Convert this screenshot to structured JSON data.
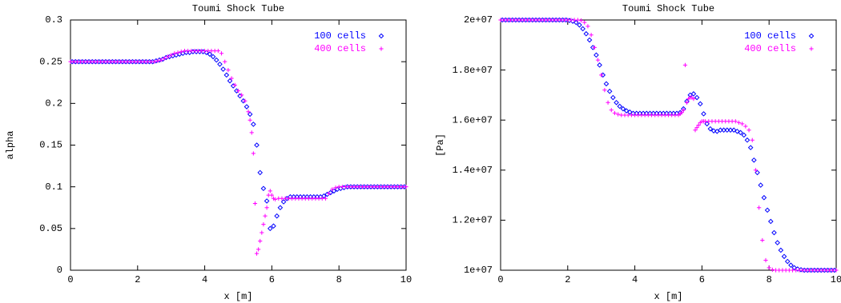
{
  "chart_data": [
    {
      "type": "scatter",
      "title": "Toumi Shock Tube",
      "x_label": "x [m]",
      "y_label": "alpha",
      "xlim": [
        0,
        10
      ],
      "ylim": [
        0,
        0.3
      ],
      "xticks": [
        0,
        2,
        4,
        6,
        8,
        10
      ],
      "yticks": [
        0,
        0.05,
        0.1,
        0.15,
        0.2,
        0.25,
        0.3
      ],
      "legend": "top-right",
      "series": [
        {
          "name": "100 cells",
          "color": "#0000ff",
          "marker": "diamond",
          "x": [
            0.05,
            0.15,
            0.25,
            0.35,
            0.45,
            0.55,
            0.65,
            0.75,
            0.85,
            0.95,
            1.05,
            1.15,
            1.25,
            1.35,
            1.45,
            1.55,
            1.65,
            1.75,
            1.85,
            1.95,
            2.05,
            2.15,
            2.25,
            2.35,
            2.45,
            2.55,
            2.65,
            2.75,
            2.85,
            2.95,
            3.05,
            3.15,
            3.25,
            3.35,
            3.45,
            3.55,
            3.65,
            3.75,
            3.85,
            3.95,
            4.05,
            4.15,
            4.25,
            4.35,
            4.45,
            4.55,
            4.65,
            4.75,
            4.85,
            4.95,
            5.05,
            5.15,
            5.25,
            5.35,
            5.45,
            5.55,
            5.65,
            5.75,
            5.85,
            5.95,
            6.05,
            6.15,
            6.25,
            6.35,
            6.45,
            6.55,
            6.65,
            6.75,
            6.85,
            6.95,
            7.05,
            7.15,
            7.25,
            7.35,
            7.45,
            7.55,
            7.65,
            7.75,
            7.85,
            7.95,
            8.05,
            8.15,
            8.25,
            8.35,
            8.45,
            8.55,
            8.65,
            8.75,
            8.85,
            8.95,
            9.05,
            9.15,
            9.25,
            9.35,
            9.45,
            9.55,
            9.65,
            9.75,
            9.85,
            9.95
          ],
          "values": [
            0.25,
            0.25,
            0.25,
            0.25,
            0.25,
            0.25,
            0.25,
            0.25,
            0.25,
            0.25,
            0.25,
            0.25,
            0.25,
            0.25,
            0.25,
            0.25,
            0.25,
            0.25,
            0.25,
            0.25,
            0.25,
            0.25,
            0.25,
            0.25,
            0.25,
            0.251,
            0.252,
            0.253,
            0.255,
            0.256,
            0.257,
            0.258,
            0.259,
            0.26,
            0.261,
            0.261,
            0.262,
            0.262,
            0.262,
            0.262,
            0.261,
            0.259,
            0.256,
            0.252,
            0.247,
            0.241,
            0.234,
            0.227,
            0.221,
            0.215,
            0.209,
            0.203,
            0.196,
            0.187,
            0.175,
            0.15,
            0.117,
            0.098,
            0.083,
            0.05,
            0.053,
            0.065,
            0.075,
            0.082,
            0.086,
            0.088,
            0.088,
            0.088,
            0.088,
            0.088,
            0.088,
            0.088,
            0.088,
            0.088,
            0.088,
            0.089,
            0.091,
            0.093,
            0.095,
            0.097,
            0.098,
            0.099,
            0.1,
            0.1,
            0.1,
            0.1,
            0.1,
            0.1,
            0.1,
            0.1,
            0.1,
            0.1,
            0.1,
            0.1,
            0.1,
            0.1,
            0.1,
            0.1,
            0.1,
            0.1
          ]
        },
        {
          "name": "400 cells",
          "color": "#ff00ff",
          "marker": "plus",
          "x": [
            0,
            0.1,
            0.2,
            0.3,
            0.4,
            0.5,
            0.6,
            0.7,
            0.8,
            0.9,
            1,
            1.1,
            1.2,
            1.3,
            1.4,
            1.5,
            1.6,
            1.7,
            1.8,
            1.9,
            2,
            2.1,
            2.2,
            2.3,
            2.4,
            2.5,
            2.6,
            2.7,
            2.8,
            2.9,
            3,
            3.1,
            3.2,
            3.3,
            3.4,
            3.5,
            3.6,
            3.7,
            3.8,
            3.9,
            4,
            4.1,
            4.2,
            4.3,
            4.4,
            4.5,
            4.6,
            4.7,
            4.8,
            4.9,
            5,
            5.1,
            5.2,
            5.3,
            5.35,
            5.4,
            5.45,
            5.5,
            5.55,
            5.6,
            5.65,
            5.7,
            5.75,
            5.8,
            5.85,
            5.9,
            5.95,
            6,
            6.05,
            6.1,
            6.2,
            6.3,
            6.4,
            6.5,
            6.6,
            6.7,
            6.8,
            6.9,
            7,
            7.1,
            7.2,
            7.3,
            7.4,
            7.5,
            7.6,
            7.7,
            7.8,
            7.9,
            8,
            8.1,
            8.2,
            8.3,
            8.4,
            8.5,
            8.6,
            8.7,
            8.8,
            8.9,
            9,
            9.1,
            9.2,
            9.3,
            9.4,
            9.5,
            9.6,
            9.7,
            9.8,
            9.9,
            10
          ],
          "values": [
            0.25,
            0.25,
            0.25,
            0.25,
            0.25,
            0.25,
            0.25,
            0.25,
            0.25,
            0.25,
            0.25,
            0.25,
            0.25,
            0.25,
            0.25,
            0.25,
            0.25,
            0.25,
            0.25,
            0.25,
            0.25,
            0.25,
            0.25,
            0.25,
            0.25,
            0.25,
            0.251,
            0.252,
            0.254,
            0.256,
            0.258,
            0.26,
            0.261,
            0.262,
            0.263,
            0.263,
            0.263,
            0.263,
            0.263,
            0.263,
            0.263,
            0.263,
            0.263,
            0.263,
            0.263,
            0.26,
            0.25,
            0.24,
            0.23,
            0.222,
            0.215,
            0.21,
            0.203,
            0.19,
            0.18,
            0.165,
            0.14,
            0.08,
            0.02,
            0.025,
            0.035,
            0.045,
            0.055,
            0.065,
            0.075,
            0.09,
            0.095,
            0.09,
            0.086,
            0.085,
            0.086,
            0.086,
            0.086,
            0.086,
            0.086,
            0.086,
            0.086,
            0.086,
            0.086,
            0.086,
            0.086,
            0.086,
            0.086,
            0.086,
            0.086,
            0.092,
            0.097,
            0.099,
            0.1,
            0.1,
            0.1,
            0.1,
            0.1,
            0.1,
            0.1,
            0.1,
            0.1,
            0.1,
            0.1,
            0.1,
            0.1,
            0.1,
            0.1,
            0.1,
            0.1,
            0.1,
            0.1,
            0.1,
            0.1
          ]
        }
      ]
    },
    {
      "type": "scatter",
      "title": "Toumi Shock Tube",
      "x_label": "x [m]",
      "y_label": "[Pa]",
      "xlim": [
        0,
        10
      ],
      "ylim": [
        10000000,
        20000000
      ],
      "xticks": [
        0,
        2,
        4,
        6,
        8,
        10
      ],
      "yticks": [
        {
          "value": 10000000,
          "label": "1e+07"
        },
        {
          "value": 12000000,
          "label": "1.2e+07"
        },
        {
          "value": 14000000,
          "label": "1.4e+07"
        },
        {
          "value": 16000000,
          "label": "1.6e+07"
        },
        {
          "value": 18000000,
          "label": "1.8e+07"
        },
        {
          "value": 20000000,
          "label": "2e+07"
        }
      ],
      "legend": "top-right",
      "series": [
        {
          "name": "100 cells",
          "color": "#0000ff",
          "marker": "diamond",
          "x": [
            0.05,
            0.15,
            0.25,
            0.35,
            0.45,
            0.55,
            0.65,
            0.75,
            0.85,
            0.95,
            1.05,
            1.15,
            1.25,
            1.35,
            1.45,
            1.55,
            1.65,
            1.75,
            1.85,
            1.95,
            2.05,
            2.15,
            2.25,
            2.35,
            2.45,
            2.55,
            2.65,
            2.75,
            2.85,
            2.95,
            3.05,
            3.15,
            3.25,
            3.35,
            3.45,
            3.55,
            3.65,
            3.75,
            3.85,
            3.95,
            4.05,
            4.15,
            4.25,
            4.35,
            4.45,
            4.55,
            4.65,
            4.75,
            4.85,
            4.95,
            5.05,
            5.15,
            5.25,
            5.35,
            5.45,
            5.55,
            5.65,
            5.75,
            5.85,
            5.95,
            6.05,
            6.15,
            6.25,
            6.35,
            6.45,
            6.55,
            6.65,
            6.75,
            6.85,
            6.95,
            7.05,
            7.15,
            7.25,
            7.35,
            7.45,
            7.55,
            7.65,
            7.75,
            7.85,
            7.95,
            8.05,
            8.15,
            8.25,
            8.35,
            8.45,
            8.55,
            8.65,
            8.75,
            8.85,
            8.95,
            9.05,
            9.15,
            9.25,
            9.35,
            9.45,
            9.55,
            9.65,
            9.75,
            9.85,
            9.95
          ],
          "values": [
            20000000,
            20000000,
            20000000,
            20000000,
            20000000,
            20000000,
            20000000,
            20000000,
            20000000,
            20000000,
            20000000,
            20000000,
            20000000,
            20000000,
            20000000,
            20000000,
            20000000,
            20000000,
            20000000,
            20000000,
            19980000,
            19950000,
            19900000,
            19800000,
            19650000,
            19450000,
            19200000,
            18900000,
            18600000,
            18200000,
            17800000,
            17450000,
            17150000,
            16900000,
            16700000,
            16550000,
            16450000,
            16370000,
            16320000,
            16270000,
            16270000,
            16270000,
            16270000,
            16270000,
            16270000,
            16270000,
            16270000,
            16270000,
            16270000,
            16270000,
            16270000,
            16270000,
            16270000,
            16300000,
            16450000,
            16750000,
            17000000,
            17050000,
            16900000,
            16650000,
            16250000,
            15850000,
            15650000,
            15570000,
            15550000,
            15600000,
            15600000,
            15600000,
            15600000,
            15600000,
            15550000,
            15500000,
            15400000,
            15200000,
            14900000,
            14400000,
            13900000,
            13400000,
            12900000,
            12400000,
            11950000,
            11500000,
            11100000,
            10800000,
            10550000,
            10350000,
            10200000,
            10100000,
            10050000,
            10020000,
            10000000,
            10000000,
            10000000,
            10000000,
            10000000,
            10000000,
            10000000,
            10000000,
            10000000,
            10000000
          ]
        },
        {
          "name": "400 cells",
          "color": "#ff00ff",
          "marker": "plus",
          "x": [
            0,
            0.1,
            0.2,
            0.3,
            0.4,
            0.5,
            0.6,
            0.7,
            0.8,
            0.9,
            1,
            1.1,
            1.2,
            1.3,
            1.4,
            1.5,
            1.6,
            1.7,
            1.8,
            1.9,
            2,
            2.1,
            2.2,
            2.3,
            2.4,
            2.5,
            2.6,
            2.7,
            2.8,
            2.9,
            3,
            3.1,
            3.2,
            3.3,
            3.4,
            3.5,
            3.6,
            3.7,
            3.8,
            3.9,
            4,
            4.1,
            4.2,
            4.3,
            4.4,
            4.5,
            4.6,
            4.7,
            4.8,
            4.9,
            5,
            5.1,
            5.2,
            5.3,
            5.35,
            5.4,
            5.45,
            5.5,
            5.55,
            5.6,
            5.65,
            5.7,
            5.75,
            5.8,
            5.85,
            5.9,
            5.95,
            6,
            6.05,
            6.1,
            6.2,
            6.3,
            6.4,
            6.5,
            6.6,
            6.7,
            6.8,
            6.9,
            7,
            7.1,
            7.2,
            7.3,
            7.4,
            7.5,
            7.6,
            7.7,
            7.8,
            7.9,
            8,
            8.1,
            8.2,
            8.3,
            8.4,
            8.5,
            8.6,
            8.7,
            8.8,
            8.9,
            9,
            9.1,
            9.2,
            9.3,
            9.4,
            9.5,
            9.6,
            9.7,
            9.8,
            9.9,
            10
          ],
          "values": [
            20000000,
            20000000,
            20000000,
            20000000,
            20000000,
            20000000,
            20000000,
            20000000,
            20000000,
            20000000,
            20000000,
            20000000,
            20000000,
            20000000,
            20000000,
            20000000,
            20000000,
            20000000,
            20000000,
            20000000,
            20000000,
            20000000,
            20000000,
            20000000,
            19980000,
            19900000,
            19750000,
            19400000,
            18900000,
            18400000,
            17800000,
            17200000,
            16700000,
            16400000,
            16280000,
            16230000,
            16200000,
            16200000,
            16200000,
            16200000,
            16200000,
            16200000,
            16200000,
            16200000,
            16200000,
            16200000,
            16200000,
            16200000,
            16200000,
            16200000,
            16200000,
            16200000,
            16200000,
            16200000,
            16250000,
            16300000,
            16400000,
            18200000,
            16700000,
            16850000,
            16900000,
            16900000,
            16850000,
            15600000,
            15700000,
            15800000,
            15900000,
            15950000,
            15950000,
            15950000,
            15950000,
            15950000,
            15950000,
            15950000,
            15950000,
            15950000,
            15950000,
            15950000,
            15950000,
            15900000,
            15850000,
            15750000,
            15600000,
            15200000,
            14000000,
            12500000,
            11200000,
            10400000,
            10100000,
            10020000,
            10000000,
            10000000,
            10000000,
            10000000,
            10000000,
            10000000,
            10000000,
            10000000,
            10000000,
            10000000,
            10000000,
            10000000,
            10000000,
            10000000,
            10000000,
            10000000,
            10000000,
            10000000,
            10000000
          ]
        }
      ]
    }
  ]
}
